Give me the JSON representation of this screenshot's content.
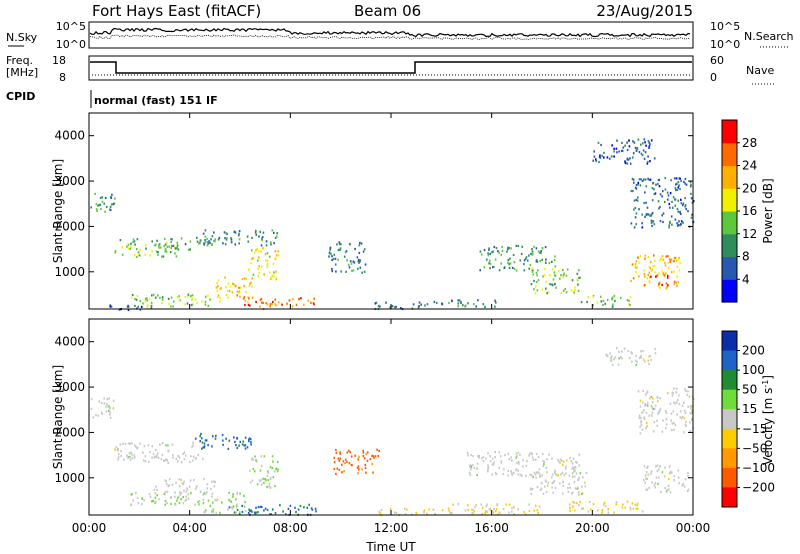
{
  "header": {
    "station": "Fort Hays East (fitACF)",
    "beam": "Beam 06",
    "date": "23/Aug/2015"
  },
  "aux": {
    "nsky_label": "N.Sky",
    "nsearch_label": "N.Search",
    "freq_label_1": "Freq.",
    "freq_label_2": "[MHz]",
    "nave_label": "Nave",
    "cpid_label": "CPID",
    "cpid_text": "normal (fast) 151 IF",
    "noise_ticks": [
      "10^5",
      "10^0"
    ],
    "freq_ticks": [
      "18",
      "8"
    ],
    "nave_ticks": [
      "60",
      "0"
    ],
    "noise_right_ticks": [
      "10^5",
      "10^0"
    ]
  },
  "colors": {
    "power": [
      "#0000ff",
      "#2859b0",
      "#2f8d5d",
      "#5dc83b",
      "#f0f000",
      "#ffb000",
      "#ff6a00",
      "#ff0000"
    ],
    "velocity": [
      "#0b2da8",
      "#1e64c8",
      "#1f8b33",
      "#6edc3a",
      "#c8c8c8",
      "#ffcc00",
      "#ff9a00",
      "#ff5a00",
      "#ff0000"
    ]
  },
  "chart_data": [
    {
      "type": "heatmap",
      "title": "Power",
      "xlabel": "",
      "ylabel": "Slant Range [km]",
      "xticks": [
        "00:00",
        "04:00",
        "08:00",
        "12:00",
        "16:00",
        "20:00",
        "00:00"
      ],
      "yticks": [
        "1000",
        "2000",
        "3000",
        "4000"
      ],
      "xlim": [
        0,
        24
      ],
      "ylim": [
        180,
        4500
      ],
      "colorbar": {
        "label": "Power [dB]",
        "ticks": [
          "4",
          "8",
          "12",
          "16",
          "20",
          "24",
          "28"
        ],
        "range": [
          0,
          30
        ]
      },
      "patches": [
        {
          "t": [
            0.05,
            1.0
          ],
          "r": [
            2300,
            2800
          ],
          "v": 10
        },
        {
          "t": [
            1.0,
            3.5
          ],
          "r": [
            1350,
            1750
          ],
          "v": 12
        },
        {
          "t": [
            3.0,
            5.0
          ],
          "r": [
            1500,
            1800
          ],
          "v": 11
        },
        {
          "t": [
            4.5,
            7.5
          ],
          "r": [
            1600,
            1950
          ],
          "v": 9
        },
        {
          "t": [
            6.3,
            7.5
          ],
          "r": [
            850,
            1550
          ],
          "v": 17
        },
        {
          "t": [
            1.5,
            5.0
          ],
          "r": [
            250,
            550
          ],
          "v": 14
        },
        {
          "t": [
            5.0,
            6.5
          ],
          "r": [
            350,
            900
          ],
          "v": 19
        },
        {
          "t": [
            6.0,
            7.5
          ],
          "r": [
            200,
            450
          ],
          "v": 25
        },
        {
          "t": [
            7.5,
            9.0
          ],
          "r": [
            250,
            450
          ],
          "v": 25
        },
        {
          "t": [
            9.5,
            11.0
          ],
          "r": [
            1000,
            1700
          ],
          "v": 8
        },
        {
          "t": [
            11.0,
            13.5
          ],
          "r": [
            200,
            350
          ],
          "v": 7
        },
        {
          "t": [
            15.5,
            18.5
          ],
          "r": [
            1050,
            1600
          ],
          "v": 10
        },
        {
          "t": [
            17.5,
            19.5
          ],
          "r": [
            550,
            1100
          ],
          "v": 14
        },
        {
          "t": [
            20.0,
            22.5
          ],
          "r": [
            3400,
            3950
          ],
          "v": 6
        },
        {
          "t": [
            21.5,
            24.0
          ],
          "r": [
            2000,
            3100
          ],
          "v": 7
        },
        {
          "t": [
            21.5,
            23.5
          ],
          "r": [
            650,
            1400
          ],
          "v": 20
        },
        {
          "t": [
            22.2,
            23.0
          ],
          "r": [
            700,
            950
          ],
          "v": 27
        },
        {
          "t": [
            19.5,
            21.5
          ],
          "r": [
            250,
            500
          ],
          "v": 13
        },
        {
          "t": [
            13.5,
            16.5
          ],
          "r": [
            250,
            400
          ],
          "v": 8
        },
        {
          "t": [
            0.5,
            2.5
          ],
          "r": [
            180,
            300
          ],
          "v": 6
        }
      ]
    },
    {
      "type": "heatmap",
      "title": "Velocity",
      "xlabel": "Time UT",
      "ylabel": "Slant Range [km]",
      "xticks": [
        "00:00",
        "04:00",
        "08:00",
        "12:00",
        "16:00",
        "20:00",
        "00:00"
      ],
      "yticks": [
        "1000",
        "2000",
        "3000",
        "4000"
      ],
      "xlim": [
        0,
        24
      ],
      "ylim": [
        180,
        4500
      ],
      "colorbar": {
        "label": "Velocity [m s^-1]",
        "ticks": [
          "200",
          "100",
          "50",
          "15",
          "-15",
          "-50",
          "-100",
          "-200"
        ],
        "range": [
          -250,
          250
        ]
      },
      "patches": [
        {
          "t": [
            0.05,
            1.0
          ],
          "r": [
            2300,
            2800
          ],
          "v": 0
        },
        {
          "t": [
            1.0,
            4.5
          ],
          "r": [
            1350,
            1800
          ],
          "v": 0
        },
        {
          "t": [
            4.2,
            6.5
          ],
          "r": [
            1650,
            2000
          ],
          "v": 150
        },
        {
          "t": [
            6.3,
            7.5
          ],
          "r": [
            800,
            1500
          ],
          "v": 30
        },
        {
          "t": [
            2.5,
            5.0
          ],
          "r": [
            650,
            1000
          ],
          "v": 0
        },
        {
          "t": [
            1.5,
            4.5
          ],
          "r": [
            400,
            700
          ],
          "v": 30
        },
        {
          "t": [
            4.5,
            6.2
          ],
          "r": [
            250,
            700
          ],
          "v": 30
        },
        {
          "t": [
            5.5,
            9.0
          ],
          "r": [
            200,
            450
          ],
          "v": 150
        },
        {
          "t": [
            9.7,
            11.5
          ],
          "r": [
            1100,
            1650
          ],
          "v": -160
        },
        {
          "t": [
            11.5,
            14.0
          ],
          "r": [
            200,
            350
          ],
          "v": -30
        },
        {
          "t": [
            15.0,
            19.5
          ],
          "r": [
            1050,
            1600
          ],
          "v": 0
        },
        {
          "t": [
            17.5,
            19.8
          ],
          "r": [
            650,
            1150
          ],
          "v": 0
        },
        {
          "t": [
            20.5,
            22.5
          ],
          "r": [
            3500,
            3900
          ],
          "v": 0
        },
        {
          "t": [
            21.8,
            24.0
          ],
          "r": [
            2000,
            3000
          ],
          "v": 0
        },
        {
          "t": [
            22.0,
            23.8
          ],
          "r": [
            700,
            1300
          ],
          "v": 0
        },
        {
          "t": [
            14.0,
            18.0
          ],
          "r": [
            200,
            450
          ],
          "v": -40
        },
        {
          "t": [
            19.0,
            22.0
          ],
          "r": [
            250,
            500
          ],
          "v": -40
        }
      ]
    }
  ]
}
